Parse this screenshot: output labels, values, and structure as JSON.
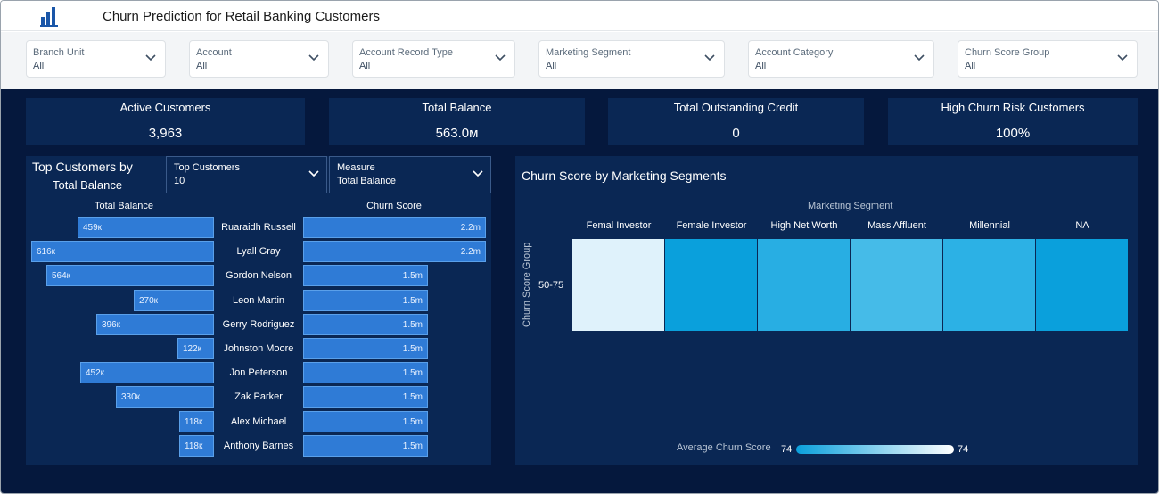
{
  "app": {
    "title": "Churn Prediction for Retail Banking Customers",
    "icon": "bar-chart-icon"
  },
  "filters": [
    {
      "label": "Branch Unit",
      "value": "All"
    },
    {
      "label": "Account",
      "value": "All"
    },
    {
      "label": "Account Record Type",
      "value": "All"
    },
    {
      "label": "Marketing Segment",
      "value": "All"
    },
    {
      "label": "Account Category",
      "value": "All"
    },
    {
      "label": "Churn Score Group",
      "value": "All"
    }
  ],
  "kpis": [
    {
      "title": "Active Customers",
      "value": "3,963"
    },
    {
      "title": "Total Balance",
      "value": "563.0м"
    },
    {
      "title": "Total Outstanding Credit",
      "value": "0"
    },
    {
      "title": "High Churn Risk Customers",
      "value": "100%"
    }
  ],
  "top_customers": {
    "title_line1": "Top Customers by",
    "title_line2": "Total Balance",
    "dropdown_top": {
      "label": "Top Customers",
      "value": "10"
    },
    "dropdown_measure": {
      "label": "Measure",
      "value": "Total Balance"
    },
    "col_balance": "Total Balance",
    "col_churn": "Churn Score",
    "rows": [
      {
        "name": "Ruaraidh Russell",
        "balance": 459,
        "balance_label": "459к",
        "churn": 2.2,
        "churn_label": "2.2m"
      },
      {
        "name": "Lyall Gray",
        "balance": 616,
        "balance_label": "616к",
        "churn": 2.2,
        "churn_label": "2.2m"
      },
      {
        "name": "Gordon Nelson",
        "balance": 564,
        "balance_label": "564к",
        "churn": 1.5,
        "churn_label": "1.5m"
      },
      {
        "name": "Leon Martin",
        "balance": 270,
        "balance_label": "270к",
        "churn": 1.5,
        "churn_label": "1.5m"
      },
      {
        "name": "Gerry Rodriguez",
        "balance": 396,
        "balance_label": "396к",
        "churn": 1.5,
        "churn_label": "1.5m"
      },
      {
        "name": "Johnston Moore",
        "balance": 122,
        "balance_label": "122к",
        "churn": 1.5,
        "churn_label": "1.5m"
      },
      {
        "name": "Jon Peterson",
        "balance": 452,
        "balance_label": "452к",
        "churn": 1.5,
        "churn_label": "1.5m"
      },
      {
        "name": "Zak Parker",
        "balance": 330,
        "balance_label": "330к",
        "churn": 1.5,
        "churn_label": "1.5m"
      },
      {
        "name": "Alex Michael",
        "balance": 118,
        "balance_label": "118к",
        "churn": 1.5,
        "churn_label": "1.5m"
      },
      {
        "name": "Anthony Barnes",
        "balance": 118,
        "balance_label": "118к",
        "churn": 1.5,
        "churn_label": "1.5m"
      }
    ]
  },
  "heatmap": {
    "title": "Churn Score by Marketing Segments",
    "x_axis_title": "Marketing Segment",
    "y_axis_title": "Churn Score Group",
    "columns": [
      "Femal Investor",
      "Female Investor",
      "High Net Worth",
      "Mass Affluent",
      "Millennial",
      "NA"
    ],
    "row_label": "50-75",
    "cell_colors": [
      "#dff2fb",
      "#0aa0dc",
      "#28aee3",
      "#45bbe8",
      "#2cb1e5",
      "#0aa0dc"
    ],
    "legend_label": "Average Churn Score",
    "legend_min": "74",
    "legend_max": "74"
  },
  "chart_data": {
    "type": "bar",
    "categories": [
      "Ruaraidh Russell",
      "Lyall Gray",
      "Gordon Nelson",
      "Leon Martin",
      "Gerry Rodriguez",
      "Johnston Moore",
      "Jon Peterson",
      "Zak Parker",
      "Alex Michael",
      "Anthony Barnes"
    ],
    "series": [
      {
        "name": "Total Balance",
        "values": [
          459,
          616,
          564,
          270,
          396,
          122,
          452,
          330,
          118,
          118
        ]
      },
      {
        "name": "Churn Score",
        "values": [
          2.2,
          2.2,
          1.5,
          1.5,
          1.5,
          1.5,
          1.5,
          1.5,
          1.5,
          1.5
        ]
      }
    ],
    "title": "Top Customers by Total Balance",
    "xlabel": "",
    "ylabel": ""
  }
}
